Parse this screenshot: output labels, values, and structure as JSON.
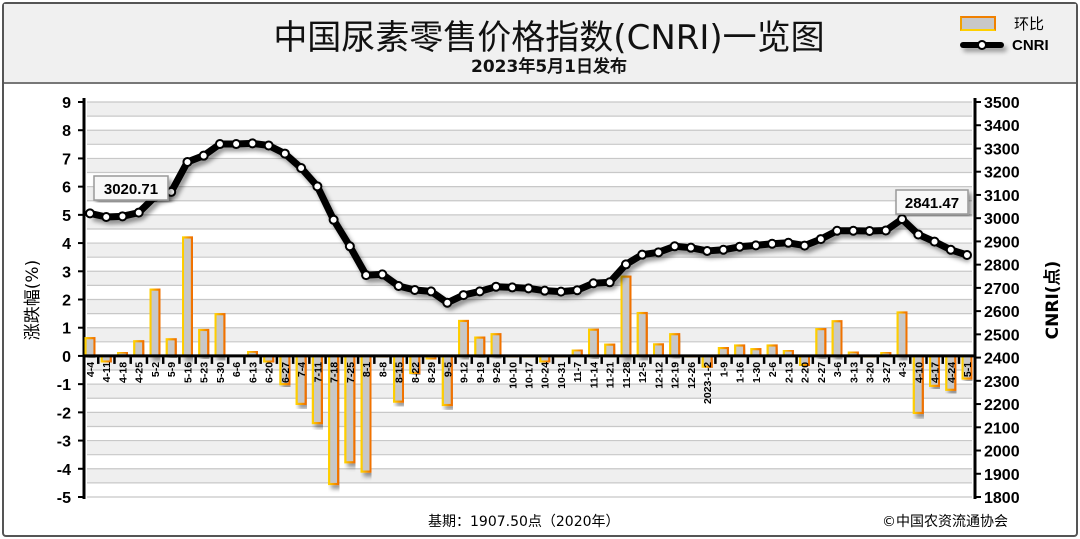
{
  "header": {
    "title": "中国尿素零售价格指数(CNRI)一览图",
    "subtitle": "2023年5月1日发布"
  },
  "legend": {
    "bar_label": "环比",
    "line_label": "CNRI"
  },
  "footer": {
    "base": "基期：1907.50点（2020年）",
    "copyright": "©中国农资流通协会"
  },
  "colors": {
    "bar_border": "#f08000",
    "bar_fill": "#c8c8c8",
    "line": "#000000",
    "grid_band": "#efefef"
  },
  "chart_data": {
    "type": "bar+line",
    "title": "中国尿素零售价格指数(CNRI)一览图",
    "ylabel_left": "涨跌幅(%)",
    "ylabel_right": "CNRI(点)",
    "ylim_left": [
      -5,
      9
    ],
    "ylim_right": [
      1800,
      3500
    ],
    "yticks_left": [
      9,
      8,
      7,
      6,
      5,
      4,
      3,
      2,
      1,
      0,
      -1,
      -2,
      -3,
      -4,
      -5
    ],
    "yticks_right": [
      3500,
      3400,
      3300,
      3200,
      3100,
      3000,
      2900,
      2800,
      2700,
      2600,
      2500,
      2400,
      2300,
      2200,
      2100,
      2000,
      1900,
      1800
    ],
    "grid": true,
    "legend_position": "top-right",
    "categories": [
      "4-4",
      "4-11",
      "4-18",
      "4-25",
      "5-2",
      "5-9",
      "5-16",
      "5-23",
      "5-30",
      "6-6",
      "6-13",
      "6-20",
      "6-27",
      "7-4",
      "7-11",
      "7-18",
      "7-25",
      "8-1",
      "8-8",
      "8-15",
      "8-22",
      "8-29",
      "9-5",
      "9-12",
      "9-19",
      "9-26",
      "10-10",
      "10-17",
      "10-24",
      "10-31",
      "11-7",
      "11-14",
      "11-21",
      "11-28",
      "12-5",
      "12-12",
      "12-19",
      "12-26",
      "2023-1-2",
      "1-9",
      "1-16",
      "1-30",
      "2-6",
      "2-13",
      "2-20",
      "2-27",
      "3-6",
      "3-13",
      "3-20",
      "3-27",
      "4-3",
      "4-10",
      "4-17",
      "4-24",
      "5-1"
    ],
    "series": [
      {
        "name": "环比",
        "type": "bar",
        "axis": "left",
        "values": [
          0.63,
          -0.2,
          0.12,
          0.52,
          2.35,
          0.59,
          4.2,
          0.92,
          1.48,
          0.02,
          0.15,
          -0.2,
          -1.0,
          -1.7,
          -2.38,
          -4.54,
          -3.77,
          -4.1,
          0.0,
          -1.62,
          -0.6,
          -0.1,
          -1.74,
          1.24,
          0.65,
          0.77,
          -0.05,
          -0.03,
          -0.2,
          -0.05,
          0.2,
          0.93,
          0.4,
          2.81,
          1.52,
          0.41,
          0.77,
          -0.05,
          -0.38,
          0.28,
          0.37,
          0.24,
          0.37,
          0.19,
          -0.32,
          0.95,
          1.23,
          0.13,
          -0.01,
          0.12,
          1.54,
          -2.02,
          -1.06,
          -1.2,
          -0.8
        ]
      },
      {
        "name": "CNRI",
        "type": "line",
        "axis": "right",
        "values": [
          3020.71,
          3005,
          3008,
          3024,
          3092,
          3113,
          3242,
          3269,
          3319,
          3319,
          3322,
          3313,
          3278,
          3216,
          3137,
          2993,
          2879,
          2755,
          2758,
          2708,
          2691,
          2685,
          2636,
          2669,
          2685,
          2705,
          2702,
          2698,
          2688,
          2684,
          2690,
          2720,
          2724,
          2801,
          2843,
          2853,
          2879,
          2873,
          2859,
          2864,
          2877,
          2883,
          2890,
          2894,
          2882,
          2910,
          2946,
          2946,
          2945,
          2947,
          2996,
          2930,
          2899,
          2864,
          2841.47
        ]
      }
    ],
    "annotations": [
      "3020.71",
      "2841.47"
    ]
  }
}
